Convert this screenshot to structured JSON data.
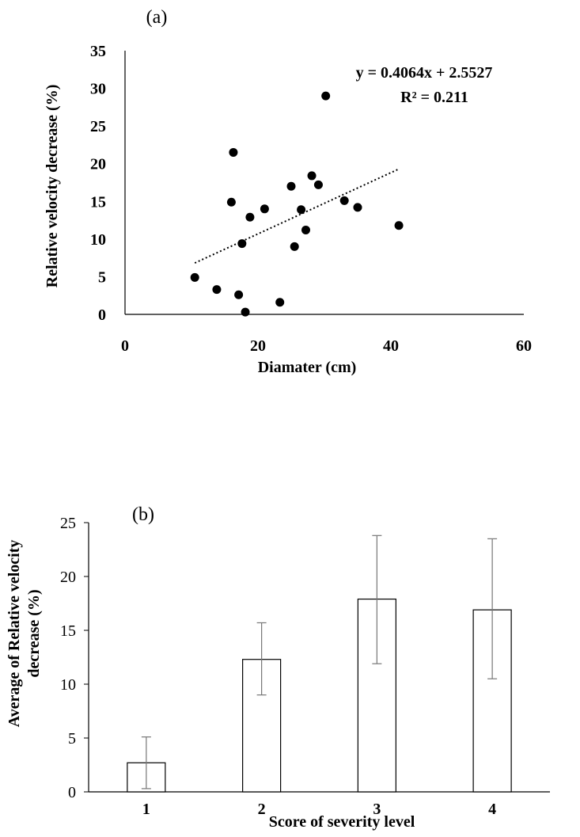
{
  "chart_data": [
    {
      "type": "scatter",
      "panel_label": "(a)",
      "xlabel": "Diamater (cm)",
      "ylabel": "Relative velocity decrease (%)",
      "xlim": [
        0,
        60
      ],
      "ylim": [
        0,
        35
      ],
      "x_ticks": [
        "0",
        "20",
        "40",
        "60"
      ],
      "y_ticks": [
        "0",
        "5",
        "10",
        "15",
        "20",
        "25",
        "30",
        "35"
      ],
      "points": [
        {
          "x": 10.5,
          "y": 4.9
        },
        {
          "x": 13.8,
          "y": 3.3
        },
        {
          "x": 16.3,
          "y": 21.5
        },
        {
          "x": 16.0,
          "y": 14.9
        },
        {
          "x": 17.1,
          "y": 2.6
        },
        {
          "x": 17.6,
          "y": 9.4
        },
        {
          "x": 18.1,
          "y": 0.3
        },
        {
          "x": 18.8,
          "y": 12.9
        },
        {
          "x": 21.0,
          "y": 14.0
        },
        {
          "x": 23.3,
          "y": 1.6
        },
        {
          "x": 25.0,
          "y": 17.0
        },
        {
          "x": 25.5,
          "y": 9.0
        },
        {
          "x": 26.5,
          "y": 13.9
        },
        {
          "x": 27.2,
          "y": 11.2
        },
        {
          "x": 28.1,
          "y": 18.4
        },
        {
          "x": 29.1,
          "y": 17.2
        },
        {
          "x": 30.2,
          "y": 29.0
        },
        {
          "x": 33.0,
          "y": 15.1
        },
        {
          "x": 35.0,
          "y": 14.2
        },
        {
          "x": 41.2,
          "y": 11.8
        }
      ],
      "trendline": {
        "slope": 0.4064,
        "intercept": 2.5527,
        "x_range": [
          10.5,
          41.2
        ],
        "style": "dotted"
      },
      "annotations": [
        "y = 0.4064x + 2.5527",
        "R² = 0.211"
      ]
    },
    {
      "type": "bar",
      "panel_label": "(b)",
      "xlabel": "Score of severity level",
      "ylabel_lines": [
        "Average of Relative velocity",
        "decrease (%)"
      ],
      "ylim": [
        0,
        25
      ],
      "y_ticks": [
        "0",
        "5",
        "10",
        "15",
        "20",
        "25"
      ],
      "categories": [
        "1",
        "2",
        "3",
        "4"
      ],
      "values": [
        2.7,
        12.3,
        17.9,
        16.9
      ],
      "error_low": [
        0.3,
        9.0,
        11.9,
        10.5
      ],
      "error_high": [
        5.1,
        15.7,
        23.8,
        23.5
      ]
    }
  ]
}
